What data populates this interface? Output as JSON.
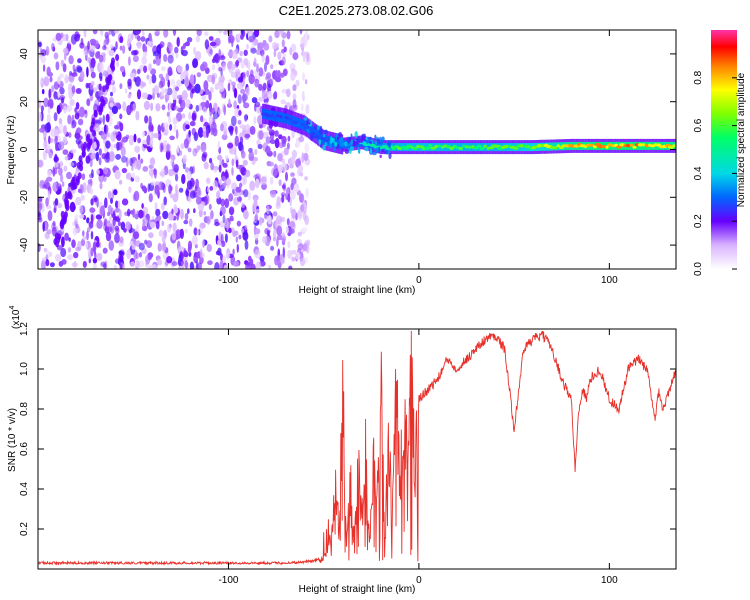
{
  "title": "C2E1.2025.273.08.02.G06",
  "colors": {
    "snr_line": "#e8302a",
    "background": "#ffffff",
    "axis": "#000000"
  },
  "chart_data": [
    {
      "type": "heatmap",
      "name": "spectrogram",
      "xlabel": "Height of straight line (km)",
      "ylabel": "Frequency (Hz)",
      "xlim": [
        -200,
        135
      ],
      "ylim": [
        -50,
        50
      ],
      "x_ticks": [
        -100,
        0,
        100
      ],
      "x_tick_labels": [
        "-100",
        "0",
        "100"
      ],
      "y_ticks": [
        -40,
        -20,
        0,
        20,
        40
      ],
      "y_tick_labels": [
        "-40",
        "-20",
        "0",
        "20",
        "40"
      ],
      "noise_region_x": [
        -200,
        -58
      ],
      "ridge": {
        "x": [
          -82,
          -70,
          -60,
          -50,
          -40,
          -30,
          -20,
          -10,
          0,
          20,
          40,
          60,
          80,
          100,
          120,
          135
        ],
        "frequency": [
          15,
          13,
          10,
          4,
          2,
          3,
          1,
          1,
          1,
          1,
          1,
          1,
          1.5,
          1.5,
          1.5,
          1.5
        ],
        "amplitude": [
          0.25,
          0.28,
          0.3,
          0.3,
          0.35,
          0.45,
          0.55,
          0.6,
          0.62,
          0.6,
          0.6,
          0.65,
          0.8,
          0.85,
          0.85,
          0.8
        ]
      },
      "colorbar": {
        "label": "Normalized spectral amplitude",
        "range": [
          0,
          1
        ],
        "ticks": [
          0.0,
          0.2,
          0.4,
          0.6,
          0.8
        ],
        "tick_labels": [
          "0.0",
          "0.2",
          "0.4",
          "0.6",
          "0.8"
        ]
      }
    },
    {
      "type": "line",
      "name": "snr",
      "xlabel": "Height of straight line (km)",
      "ylabel": "SNR (10 * v/v)",
      "y_scale_note": "(x10",
      "y_scale_exponent": "4",
      "xlim": [
        -200,
        135
      ],
      "ylim": [
        0,
        1.2
      ],
      "x_ticks": [
        -100,
        0,
        100
      ],
      "x_tick_labels": [
        "-100",
        "0",
        "100"
      ],
      "y_ticks": [
        0.2,
        0.4,
        0.6,
        0.8,
        1.0,
        1.2
      ],
      "y_tick_labels": [
        "0.2",
        "0.4",
        "0.6",
        "0.8",
        "1.0",
        "1.2"
      ],
      "x": [
        -200,
        -150,
        -100,
        -70,
        -60,
        -50,
        -46,
        -44,
        -42,
        -40,
        -38,
        -36,
        -34,
        -32,
        -30,
        -28,
        -26,
        -24,
        -22,
        -20,
        -18,
        -16,
        -14,
        -12,
        -10,
        -8,
        -6,
        -4,
        -2,
        0,
        5,
        10,
        15,
        20,
        25,
        30,
        35,
        40,
        45,
        50,
        55,
        60,
        65,
        70,
        75,
        80,
        82,
        84,
        86,
        88,
        90,
        95,
        100,
        105,
        110,
        115,
        120,
        122,
        124,
        126,
        128,
        130,
        132,
        135
      ],
      "y": [
        0.03,
        0.03,
        0.03,
        0.03,
        0.035,
        0.05,
        0.15,
        0.4,
        0.2,
        0.85,
        0.1,
        0.5,
        0.05,
        0.6,
        0.2,
        0.75,
        0.1,
        0.55,
        0.3,
        0.9,
        0.15,
        0.7,
        0.2,
        0.95,
        0.4,
        0.8,
        0.5,
        0.9,
        0.45,
        0.85,
        0.9,
        0.95,
        1.05,
        1.0,
        1.05,
        1.1,
        1.15,
        1.17,
        1.1,
        0.7,
        1.1,
        1.15,
        1.17,
        1.1,
        0.95,
        0.85,
        0.5,
        0.8,
        0.9,
        0.85,
        0.95,
        1.0,
        0.85,
        0.8,
        1.0,
        1.05,
        1.0,
        0.85,
        0.75,
        0.9,
        0.8,
        0.85,
        0.9,
        1.0
      ]
    }
  ]
}
